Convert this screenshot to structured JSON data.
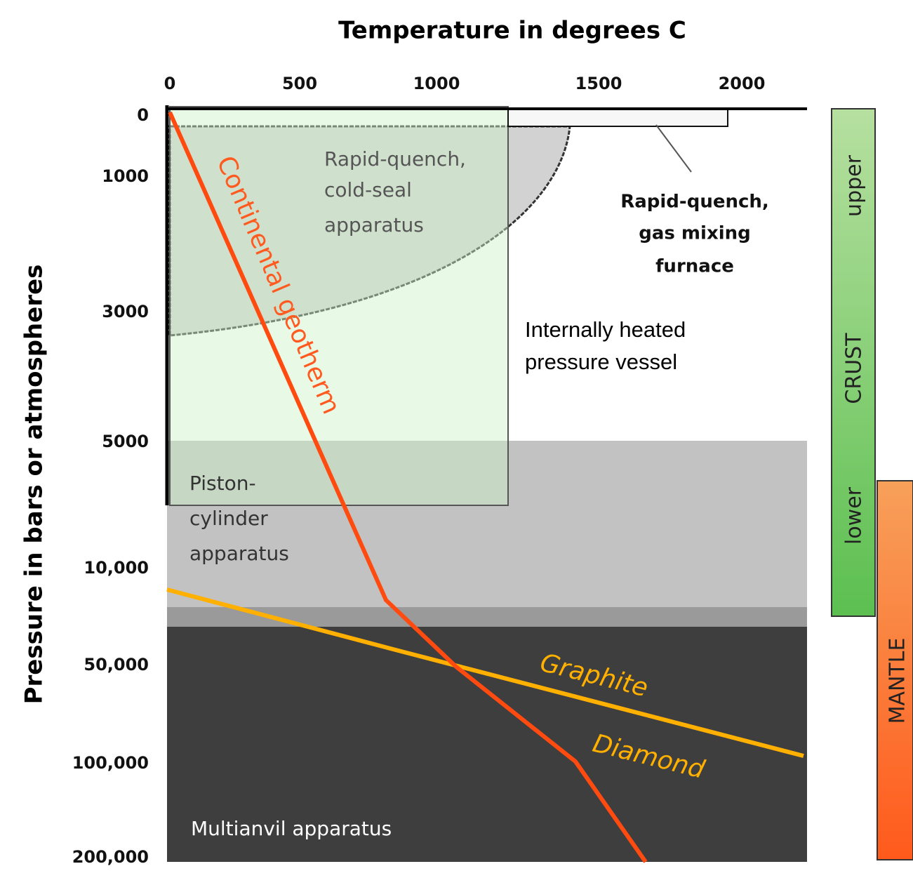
{
  "title": "Temperature in degrees C",
  "y_axis_title": "Pressure in bars or atmospheres",
  "x_ticks": [
    "0",
    "500",
    "1000",
    "1500",
    "2000"
  ],
  "y_ticks": [
    "0",
    "1000",
    "3000",
    "5000",
    "10,000",
    "50,000",
    "100,000",
    "200,000"
  ],
  "regions": {
    "cold_seal": [
      "Rapid-quench,",
      "cold-seal",
      "apparatus"
    ],
    "gas_mixing": [
      "Rapid-quench,",
      "gas mixing",
      "furnace"
    ],
    "internally_heated": [
      "Internally heated",
      "pressure vessel"
    ],
    "piston": [
      "Piston-",
      "cylinder",
      "apparatus"
    ],
    "multianvil": "Multianvil apparatus"
  },
  "curves": {
    "geotherm": "Continental geotherm",
    "graphite": "Graphite",
    "diamond": "Diamond"
  },
  "side": {
    "crust": "CRUST",
    "upper": "upper",
    "lower": "lower",
    "mantle": "MANTLE"
  }
}
